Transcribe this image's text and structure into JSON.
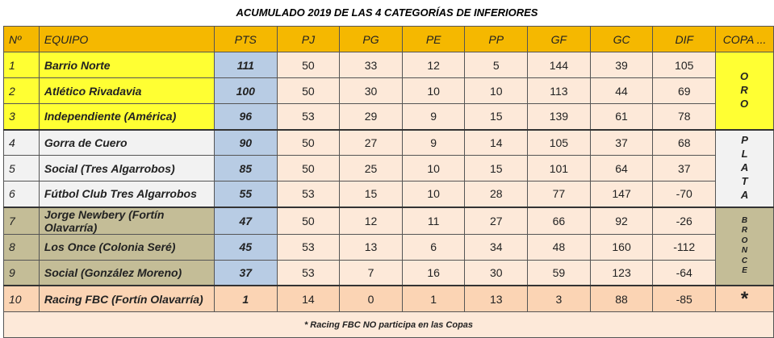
{
  "title": "ACUMULADO 2019 DE LAS 4 CATEGORÍAS DE INFERIORES",
  "headers": [
    "Nº",
    "EQUIPO",
    "PTS",
    "PJ",
    "PG",
    "PE",
    "PP",
    "GF",
    "GC",
    "DIF",
    "COPA ..."
  ],
  "rows": [
    {
      "pos": "1",
      "team": "Barrio Norte",
      "pts": "111",
      "pj": "50",
      "pg": "33",
      "pe": "12",
      "pp": "5",
      "gf": "144",
      "gc": "39",
      "dif": "105"
    },
    {
      "pos": "2",
      "team": "Atlético Rivadavia",
      "pts": "100",
      "pj": "50",
      "pg": "30",
      "pe": "10",
      "pp": "10",
      "gf": "113",
      "gc": "44",
      "dif": "69"
    },
    {
      "pos": "3",
      "team": "Independiente (América)",
      "pts": "96",
      "pj": "53",
      "pg": "29",
      "pe": "9",
      "pp": "15",
      "gf": "139",
      "gc": "61",
      "dif": "78"
    },
    {
      "pos": "4",
      "team": "Gorra de Cuero",
      "pts": "90",
      "pj": "50",
      "pg": "27",
      "pe": "9",
      "pp": "14",
      "gf": "105",
      "gc": "37",
      "dif": "68"
    },
    {
      "pos": "5",
      "team": "Social (Tres Algarrobos)",
      "pts": "85",
      "pj": "50",
      "pg": "25",
      "pe": "10",
      "pp": "15",
      "gf": "101",
      "gc": "64",
      "dif": "37"
    },
    {
      "pos": "6",
      "team": "Fútbol Club Tres Algarrobos",
      "pts": "55",
      "pj": "53",
      "pg": "15",
      "pe": "10",
      "pp": "28",
      "gf": "77",
      "gc": "147",
      "dif": "-70"
    },
    {
      "pos": "7",
      "team": "Jorge Newbery (Fortín Olavarría)",
      "pts": "47",
      "pj": "50",
      "pg": "12",
      "pe": "11",
      "pp": "27",
      "gf": "66",
      "gc": "92",
      "dif": "-26"
    },
    {
      "pos": "8",
      "team": "Los Once (Colonia Seré)",
      "pts": "45",
      "pj": "53",
      "pg": "13",
      "pe": "6",
      "pp": "34",
      "gf": "48",
      "gc": "160",
      "dif": "-112"
    },
    {
      "pos": "9",
      "team": "Social (González Moreno)",
      "pts": "37",
      "pj": "53",
      "pg": "7",
      "pe": "16",
      "pp": "30",
      "gf": "59",
      "gc": "123",
      "dif": "-64"
    },
    {
      "pos": "10",
      "team": "Racing FBC (Fortín Olavarría)",
      "pts": "1",
      "pj": "14",
      "pg": "0",
      "pe": "1",
      "pp": "13",
      "gf": "3",
      "gc": "88",
      "dif": "-85"
    }
  ],
  "cups": {
    "oro": [
      "O",
      "R",
      "O"
    ],
    "plata": [
      "P",
      "L",
      "A",
      "T",
      "A"
    ],
    "bronce": [
      "B",
      "R",
      "O",
      "N",
      "C",
      "E"
    ],
    "star": "*"
  },
  "footnote": "* Racing FBC NO participa en las Copas",
  "colors": {
    "header": "#f5b800",
    "oro": "#ffff33",
    "plata": "#f2f2f2",
    "bronce": "#c4bd97",
    "pts": "#b8cce4",
    "stats": "#fde9d9",
    "racing": "#fbd4b4"
  }
}
